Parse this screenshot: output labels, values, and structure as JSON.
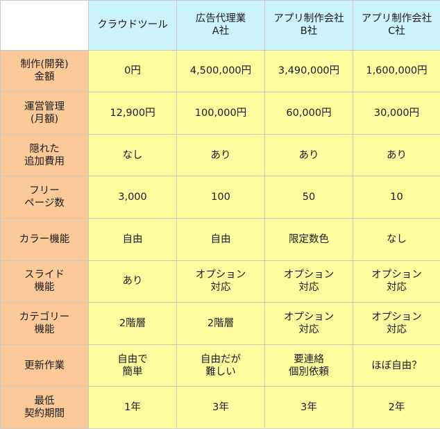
{
  "columns": [
    "クラウドツール",
    "広告代理業\nA社",
    "アプリ制作会社\nB社",
    "アプリ制作会社\nC社"
  ],
  "rows": [
    {
      "label": "制作(開発)\n金額",
      "values": [
        "0円",
        "4,500,000円",
        "3,490,000円",
        "1,600,000円"
      ],
      "highlight": [
        true,
        false,
        false,
        false
      ]
    },
    {
      "label": "運営管理\n(月額)",
      "values": [
        "12,900円",
        "100,000円",
        "60,000円",
        "30,000円"
      ],
      "highlight": [
        true,
        false,
        false,
        false
      ]
    },
    {
      "label": "隠れた\n追加費用",
      "values": [
        "なし",
        "あり",
        "あり",
        "あり"
      ],
      "highlight": [
        true,
        false,
        false,
        false
      ]
    },
    {
      "label": "フリー\nページ数",
      "values": [
        "3,000",
        "100",
        "50",
        "10"
      ],
      "highlight": [
        true,
        false,
        false,
        false
      ]
    },
    {
      "label": "カラー機能",
      "values": [
        "自由",
        "自由",
        "限定数色",
        "なし"
      ],
      "highlight": [
        true,
        true,
        false,
        false
      ]
    },
    {
      "label": "スライド\n機能",
      "values": [
        "あり",
        "オプション\n対応",
        "オプション\n対応",
        "オプション\n対応"
      ],
      "highlight": [
        true,
        false,
        false,
        false
      ]
    },
    {
      "label": "カテゴリー\n機能",
      "values": [
        "2階層",
        "2階層",
        "オプション\n対応",
        "オプション\n対応"
      ],
      "highlight": [
        true,
        true,
        false,
        false
      ]
    },
    {
      "label": "更新作業",
      "values": [
        "自由で\n簡単",
        "自由だが\n難しい",
        "要連絡\n個別依頼",
        "ほぼ自由？"
      ],
      "highlight": [
        true,
        false,
        false,
        false
      ]
    },
    {
      "label": "最低\n契約期間",
      "values": [
        "1年",
        "3年",
        "3年",
        "2年"
      ],
      "highlight": [
        true,
        false,
        false,
        false
      ]
    }
  ],
  "colors": {
    "header_bg": "#ccf2fc",
    "row_label_bg": "#fcc998",
    "cell_bg": "#fdfda0",
    "highlight_text": "#e01010",
    "border": "#c9c9c9"
  }
}
